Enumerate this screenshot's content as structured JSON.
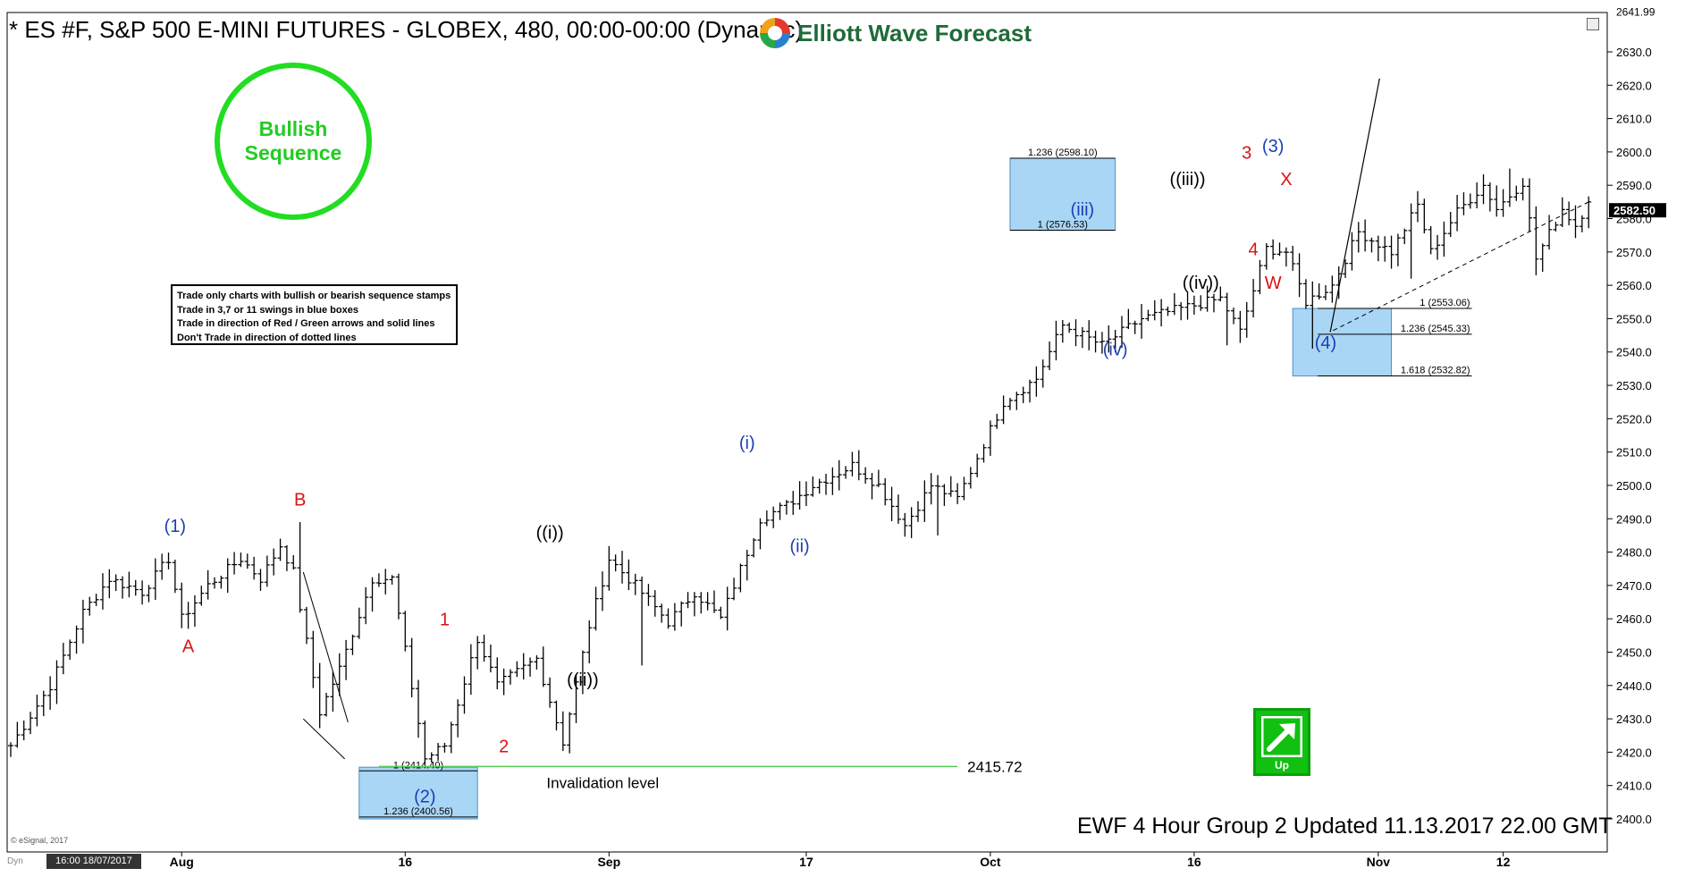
{
  "title": "* ES #F, S&P 500 E-MINI FUTURES - GLOBEX, 480, 00:00-00:00 (Dynamic)",
  "logo_text": "Elliott Wave Forecast",
  "stamp": {
    "line1": "Bullish",
    "line2": "Sequence",
    "color": "#22dd22"
  },
  "rules": [
    "Trade only charts with bullish or bearish sequence stamps",
    "Trade in 3,7 or 11 swings in blue boxes",
    "Trade in direction of Red / Green arrows and solid lines",
    "Don't Trade in direction of dotted lines"
  ],
  "footer": "EWF 4 Hour Group 2 Updated 11.13.2017 22.00 GMT",
  "copyright": "© eSignal, 2017",
  "date_box": "16:00 18/07/2017",
  "dyn_label": "Dyn",
  "up_label": "Up",
  "colors": {
    "blue_box": "#a9d6f5",
    "invalidation_line": "#55cc55",
    "label_blue": "#1c3fb5",
    "label_red": "#dd1111",
    "label_black": "#000000"
  },
  "chart_data": {
    "type": "ohlc",
    "y_axis": {
      "ticks": [
        2400,
        2410,
        2420,
        2430,
        2440,
        2450,
        2460,
        2470,
        2480,
        2490,
        2500,
        2510,
        2520,
        2530,
        2540,
        2550,
        2560,
        2570,
        2580,
        2590,
        2600,
        2610,
        2620,
        2630
      ],
      "top_value": 2641.99,
      "top_label": "2641.99",
      "current_price": 2582.5,
      "current_label": "2582.50",
      "range": [
        2394,
        2645
      ]
    },
    "x_axis": {
      "labels": [
        "Aug",
        "16",
        "Sep",
        "17",
        "Oct",
        "16",
        "Nov",
        "12"
      ],
      "label_bars": [
        26,
        60,
        91,
        121,
        149,
        180,
        208,
        227
      ]
    },
    "bars_count": 245,
    "pivots": [
      [
        0,
        2422
      ],
      [
        6,
        2440
      ],
      [
        11,
        2462
      ],
      [
        15,
        2472
      ],
      [
        20,
        2468
      ],
      [
        24,
        2478
      ],
      [
        26,
        2460
      ],
      [
        30,
        2470
      ],
      [
        35,
        2478
      ],
      [
        38,
        2472
      ],
      [
        41,
        2482
      ],
      [
        43,
        2474
      ],
      [
        47,
        2432
      ],
      [
        50,
        2445
      ],
      [
        55,
        2472
      ],
      [
        58,
        2472
      ],
      [
        63,
        2418
      ],
      [
        66,
        2422
      ],
      [
        71,
        2454
      ],
      [
        74,
        2440
      ],
      [
        80,
        2448
      ],
      [
        84,
        2423
      ],
      [
        88,
        2458
      ],
      [
        91,
        2478
      ],
      [
        95,
        2470
      ],
      [
        100,
        2459
      ],
      [
        104,
        2468
      ],
      [
        108,
        2460
      ],
      [
        114,
        2490
      ],
      [
        118,
        2494
      ],
      [
        122,
        2500
      ],
      [
        128,
        2506
      ],
      [
        132,
        2500
      ],
      [
        136,
        2488
      ],
      [
        140,
        2500
      ],
      [
        144,
        2496
      ],
      [
        151,
        2525
      ],
      [
        156,
        2532
      ],
      [
        160,
        2548
      ],
      [
        166,
        2542
      ],
      [
        172,
        2550
      ],
      [
        178,
        2553
      ],
      [
        184,
        2556
      ],
      [
        187,
        2546
      ],
      [
        191,
        2571
      ],
      [
        194,
        2570
      ],
      [
        197,
        2555
      ],
      [
        201,
        2560
      ],
      [
        205,
        2576
      ],
      [
        210,
        2570
      ],
      [
        214,
        2584
      ],
      [
        216,
        2570
      ],
      [
        220,
        2582
      ],
      [
        224,
        2590
      ],
      [
        226,
        2583
      ],
      [
        230,
        2591
      ],
      [
        232,
        2568
      ],
      [
        236,
        2583
      ],
      [
        238,
        2578
      ],
      [
        240,
        2585
      ]
    ],
    "spikes": [
      {
        "bar": 27,
        "low": 2457
      },
      {
        "bar": 44,
        "high": 2489
      },
      {
        "bar": 96,
        "low": 2446
      },
      {
        "bar": 141,
        "low": 2485
      },
      {
        "bar": 185,
        "low": 2542
      },
      {
        "bar": 198,
        "low": 2541
      },
      {
        "bar": 205,
        "high": 2579
      },
      {
        "bar": 213,
        "low": 2562
      },
      {
        "bar": 228,
        "high": 2595
      },
      {
        "bar": 232,
        "low": 2563
      }
    ],
    "wave_labels": [
      {
        "text": "(1)",
        "bar": 25,
        "price": 2486,
        "color": "blue"
      },
      {
        "text": "A",
        "bar": 27,
        "price": 2450,
        "color": "red"
      },
      {
        "text": "B",
        "bar": 44,
        "price": 2494,
        "color": "red"
      },
      {
        "text": "(2)",
        "bar": 63,
        "price": 2405,
        "color": "blue"
      },
      {
        "text": "1",
        "bar": 66,
        "price": 2458,
        "color": "red"
      },
      {
        "text": "2",
        "bar": 75,
        "price": 2420,
        "color": "red"
      },
      {
        "text": "((i))",
        "bar": 82,
        "price": 2484,
        "color": "black"
      },
      {
        "text": "((ii))",
        "bar": 87,
        "price": 2440,
        "color": "black"
      },
      {
        "text": "(i)",
        "bar": 112,
        "price": 2511,
        "color": "blue"
      },
      {
        "text": "(ii)",
        "bar": 120,
        "price": 2480,
        "color": "blue"
      },
      {
        "text": "(iii)",
        "bar": 163,
        "price": 2581,
        "color": "blue"
      },
      {
        "text": "(iv)",
        "bar": 168,
        "price": 2539,
        "color": "blue"
      },
      {
        "text": "((iii))",
        "bar": 179,
        "price": 2590,
        "color": "black"
      },
      {
        "text": "((iv))",
        "bar": 181,
        "price": 2559,
        "color": "black"
      },
      {
        "text": "3",
        "bar": 188,
        "price": 2598,
        "color": "red"
      },
      {
        "text": "(3)",
        "bar": 192,
        "price": 2600,
        "color": "blue"
      },
      {
        "text": "4",
        "bar": 189,
        "price": 2569,
        "color": "red"
      },
      {
        "text": "X",
        "bar": 194,
        "price": 2590,
        "color": "red"
      },
      {
        "text": "W",
        "bar": 192,
        "price": 2559,
        "color": "red"
      },
      {
        "text": "(4)",
        "bar": 200,
        "price": 2541,
        "color": "blue"
      }
    ],
    "blue_boxes": [
      {
        "x0_bar": 53,
        "x1_bar": 71,
        "top": 2415.5,
        "bottom": 2400,
        "levels": [
          {
            "label": "1 (2414.40)",
            "price": 2414.4
          },
          {
            "label": "1.236 (2400.56)",
            "price": 2400.56
          }
        ]
      },
      {
        "x0_bar": 152,
        "x1_bar": 168,
        "top": 2598.1,
        "bottom": 2576.5,
        "levels": [
          {
            "label": "1.236 (2598.10)",
            "price": 2598.1
          },
          {
            "label": "1 (2576.53)",
            "price": 2576.53
          }
        ]
      },
      {
        "x0_bar": 195,
        "x1_bar": 210,
        "top": 2553.06,
        "bottom": 2532.82,
        "levels": [
          {
            "label": "1 (2553.06)",
            "price": 2553.06
          },
          {
            "label": "1.236 (2545.33)",
            "price": 2545.33
          },
          {
            "label": "1.618 (2532.82)",
            "price": 2532.82
          }
        ]
      }
    ],
    "invalidation": {
      "price": 2415.72,
      "label": "2415.72",
      "text": "Invalidation level"
    }
  }
}
